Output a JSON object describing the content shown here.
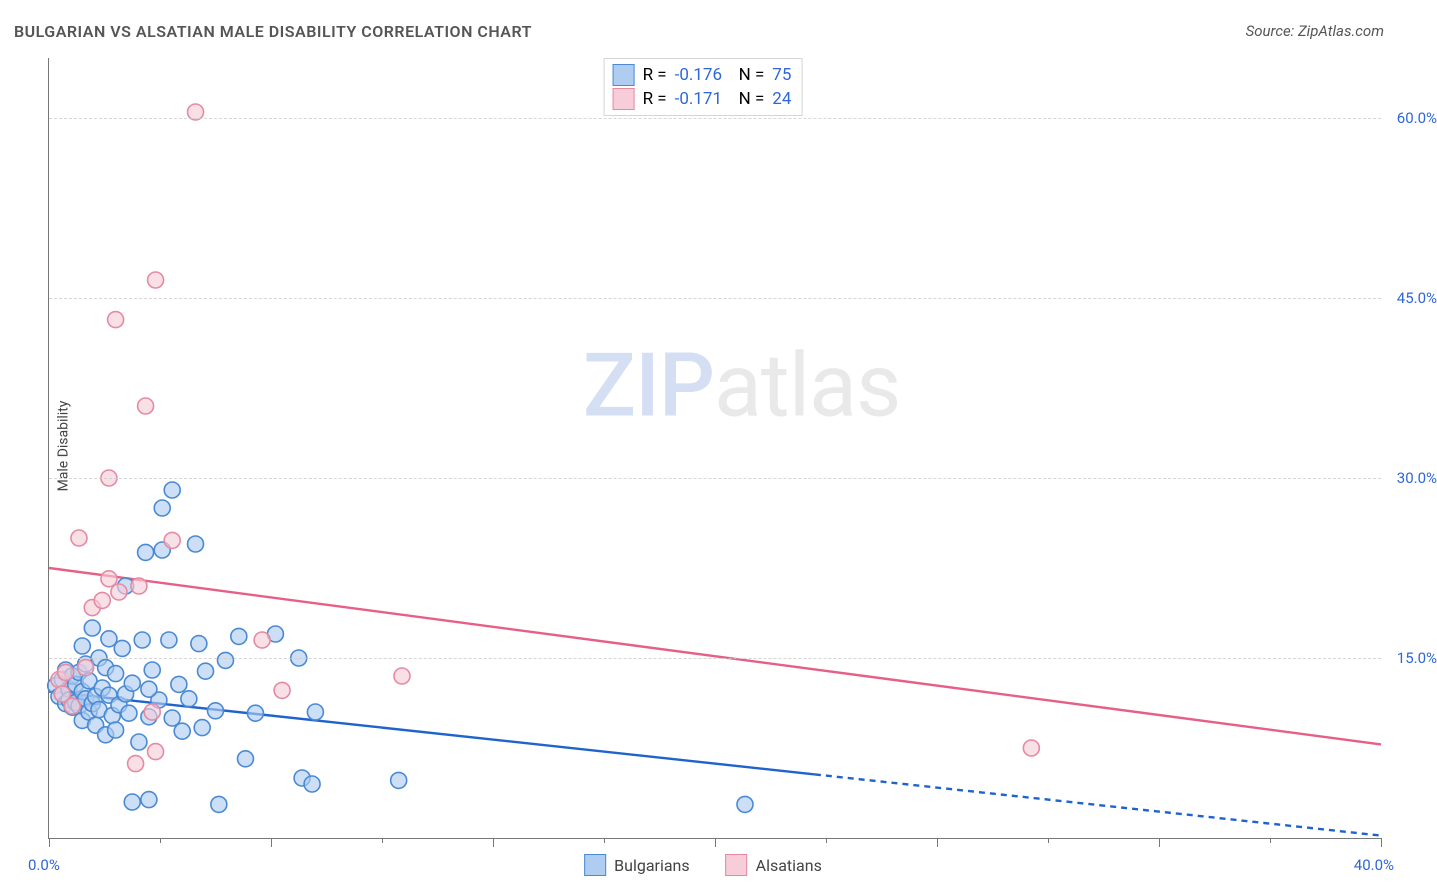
{
  "title": "BULGARIAN VS ALSATIAN MALE DISABILITY CORRELATION CHART",
  "source": "Source: ZipAtlas.com",
  "ylabel": "Male Disability",
  "watermark_zip": "ZIP",
  "watermark_atlas": "atlas",
  "chart": {
    "type": "scatter",
    "xlim": [
      0,
      40
    ],
    "ylim": [
      0,
      65
    ],
    "background_color": "#ffffff",
    "grid_color": "#cccccc",
    "axis_color": "#777777",
    "tick_color": "#2f67d8",
    "y_gridlines": [
      15,
      30,
      45,
      60
    ],
    "y_tick_labels": [
      "15.0%",
      "30.0%",
      "45.0%",
      "60.0%"
    ],
    "x_ticks_major": [
      0,
      6.667,
      13.333,
      20.0,
      26.667,
      33.333,
      40.0
    ],
    "x_ticks_minor": [
      3.333,
      10.0,
      16.667,
      23.333,
      30.0,
      36.667
    ],
    "x_origin_label": "0.0%",
    "x_end_label": "40.0%",
    "marker_radius": 8,
    "marker_stroke_width": 1.6,
    "marker_fill_opacity": 0.28,
    "line_width": 2.4,
    "dash_pattern": "6 5",
    "series": {
      "bulgarians": {
        "label": "Bulgarians",
        "color_stroke": "#4a8ad4",
        "color_fill": "#aecdf0",
        "trend_color": "#1f63cc",
        "R_label": "R =",
        "R_value": "-0.176",
        "N_label": "N =",
        "N_value": "75",
        "trend": {
          "x1": 0,
          "y1": 12.2,
          "x2_solid": 23.0,
          "y2_solid": 5.3,
          "x2_dash": 40.0,
          "y2_dash": 0.2
        },
        "points": [
          [
            0.2,
            12.7
          ],
          [
            0.3,
            11.8
          ],
          [
            0.4,
            13.2
          ],
          [
            0.4,
            12.0
          ],
          [
            0.5,
            11.2
          ],
          [
            0.5,
            14.0
          ],
          [
            0.6,
            12.4
          ],
          [
            0.6,
            11.5
          ],
          [
            0.7,
            13.5
          ],
          [
            0.7,
            10.9
          ],
          [
            0.8,
            12.8
          ],
          [
            0.8,
            11.3
          ],
          [
            0.9,
            13.8
          ],
          [
            0.9,
            11.0
          ],
          [
            1.0,
            12.2
          ],
          [
            1.0,
            16.0
          ],
          [
            1.0,
            9.8
          ],
          [
            1.1,
            11.6
          ],
          [
            1.1,
            14.5
          ],
          [
            1.2,
            10.5
          ],
          [
            1.2,
            13.1
          ],
          [
            1.3,
            11.2
          ],
          [
            1.3,
            17.5
          ],
          [
            1.4,
            11.8
          ],
          [
            1.4,
            9.4
          ],
          [
            1.5,
            15.0
          ],
          [
            1.5,
            10.7
          ],
          [
            1.6,
            12.5
          ],
          [
            1.7,
            8.6
          ],
          [
            1.7,
            14.2
          ],
          [
            1.8,
            16.6
          ],
          [
            1.8,
            11.9
          ],
          [
            1.9,
            10.2
          ],
          [
            2.0,
            13.7
          ],
          [
            2.0,
            9.0
          ],
          [
            2.1,
            11.1
          ],
          [
            2.2,
            15.8
          ],
          [
            2.3,
            12.0
          ],
          [
            2.3,
            21.0
          ],
          [
            2.4,
            10.4
          ],
          [
            2.5,
            3.0
          ],
          [
            2.5,
            12.9
          ],
          [
            2.7,
            8.0
          ],
          [
            2.8,
            16.5
          ],
          [
            2.9,
            23.8
          ],
          [
            3.0,
            10.1
          ],
          [
            3.0,
            3.2
          ],
          [
            3.1,
            14.0
          ],
          [
            3.3,
            11.5
          ],
          [
            3.4,
            27.5
          ],
          [
            3.4,
            24.0
          ],
          [
            3.6,
            16.5
          ],
          [
            3.7,
            10.0
          ],
          [
            3.7,
            29.0
          ],
          [
            3.9,
            12.8
          ],
          [
            4.0,
            8.9
          ],
          [
            4.2,
            11.6
          ],
          [
            4.4,
            24.5
          ],
          [
            4.5,
            16.2
          ],
          [
            4.6,
            9.2
          ],
          [
            4.7,
            13.9
          ],
          [
            5.0,
            10.6
          ],
          [
            5.1,
            2.8
          ],
          [
            5.3,
            14.8
          ],
          [
            5.7,
            16.8
          ],
          [
            5.9,
            6.6
          ],
          [
            6.2,
            10.4
          ],
          [
            6.8,
            17.0
          ],
          [
            7.5,
            15.0
          ],
          [
            7.6,
            5.0
          ],
          [
            8.0,
            10.5
          ],
          [
            7.9,
            4.5
          ],
          [
            10.5,
            4.8
          ],
          [
            20.9,
            2.8
          ],
          [
            3.0,
            12.4
          ]
        ]
      },
      "alsatians": {
        "label": "Alsatians",
        "color_stroke": "#e68aa3",
        "color_fill": "#f6cdd8",
        "trend_color": "#e65f87",
        "R_label": "R =",
        "R_value": "-0.171",
        "N_label": "N =",
        "N_value": "24",
        "trend": {
          "x1": 0,
          "y1": 22.5,
          "x2_solid": 40.0,
          "y2_solid": 7.8,
          "x2_dash": 40.0,
          "y2_dash": 7.8
        },
        "points": [
          [
            0.3,
            13.2
          ],
          [
            0.4,
            12.0
          ],
          [
            0.5,
            13.8
          ],
          [
            0.7,
            11.0
          ],
          [
            0.9,
            25.0
          ],
          [
            1.1,
            14.2
          ],
          [
            1.3,
            19.2
          ],
          [
            1.6,
            19.8
          ],
          [
            1.8,
            30.0
          ],
          [
            1.8,
            21.6
          ],
          [
            2.0,
            43.2
          ],
          [
            2.1,
            20.5
          ],
          [
            2.6,
            6.2
          ],
          [
            2.7,
            21.0
          ],
          [
            2.9,
            36.0
          ],
          [
            3.1,
            10.5
          ],
          [
            3.2,
            46.5
          ],
          [
            3.2,
            7.2
          ],
          [
            3.7,
            24.8
          ],
          [
            4.4,
            60.5
          ],
          [
            6.4,
            16.5
          ],
          [
            7.0,
            12.3
          ],
          [
            10.6,
            13.5
          ],
          [
            29.5,
            7.5
          ]
        ]
      }
    }
  }
}
